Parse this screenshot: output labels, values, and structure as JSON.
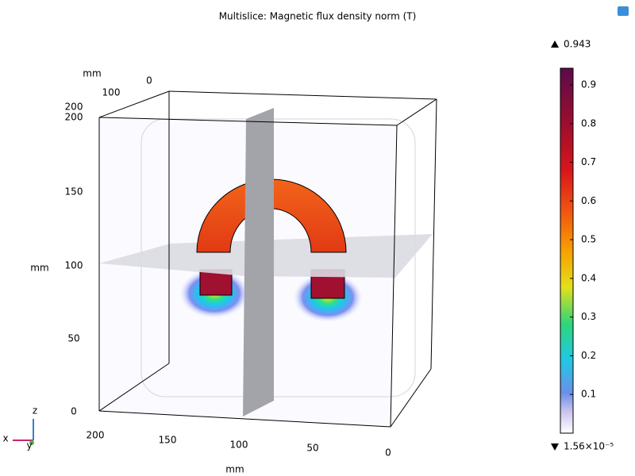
{
  "chart_data": {
    "type": "multislice",
    "title": "Multislice: Magnetic flux density norm (T)",
    "axis_unit": "mm",
    "z_ticks": [
      0,
      50,
      100,
      150,
      200
    ],
    "x_ticks": [
      200,
      150,
      100,
      50,
      0
    ],
    "y_ticks": [
      200,
      100,
      0
    ],
    "triad": [
      "x",
      "y",
      "z"
    ],
    "colorbar": {
      "range": [
        {
          "value": 1.56e-05,
          "label": "1.56×10⁻⁵"
        },
        0.943
      ],
      "ticks": [
        0.1,
        0.2,
        0.3,
        0.4,
        0.5,
        0.6,
        0.7,
        0.8,
        0.9
      ]
    }
  }
}
